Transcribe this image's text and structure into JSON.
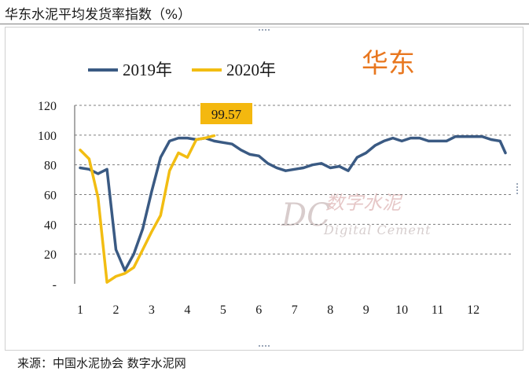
{
  "page_title": "华东水泥平均发货率指数（%）",
  "source_note": "来源：中国水泥协会  数字水泥网",
  "region_label": "华东",
  "watermark": {
    "mark": "DC",
    "text_cn": "数字水泥",
    "text_en": "Digital Cement"
  },
  "colors": {
    "s2019": "#3a5a83",
    "s2020": "#f2bd12",
    "region": "#e8771f",
    "grid": "#7f7f7f",
    "callout_bg": "#f4b80f"
  },
  "chart_data": {
    "type": "line",
    "title": "",
    "xlabel": "",
    "ylabel": "",
    "ylim": [
      0,
      120
    ],
    "yticks": [
      "-",
      "20",
      "40",
      "60",
      "80",
      "100",
      "120"
    ],
    "xlim": [
      1,
      12.9
    ],
    "xticks": [
      1,
      2,
      3,
      4,
      5,
      6,
      7,
      8,
      9,
      10,
      11,
      12
    ],
    "xtick_labels": [
      "1",
      "2",
      "3",
      "4",
      "5",
      "6",
      "7",
      "8",
      "9",
      "10",
      "11",
      "12"
    ],
    "grid": "horizontal dashed",
    "legend": "top-left",
    "annotation": {
      "label": "99.57",
      "series": "2020年"
    },
    "series": [
      {
        "name": "2019年",
        "points": [
          [
            1,
            78
          ],
          [
            1.25,
            77
          ],
          [
            1.5,
            74
          ],
          [
            1.75,
            77
          ],
          [
            2,
            23
          ],
          [
            2.25,
            9
          ],
          [
            2.5,
            20
          ],
          [
            2.75,
            37
          ],
          [
            3,
            62
          ],
          [
            3.25,
            85
          ],
          [
            3.5,
            96
          ],
          [
            3.75,
            98
          ],
          [
            4,
            98
          ],
          [
            4.25,
            97
          ],
          [
            4.5,
            98
          ],
          [
            4.75,
            96
          ],
          [
            5,
            95
          ],
          [
            5.25,
            94
          ],
          [
            5.5,
            90
          ],
          [
            5.75,
            87
          ],
          [
            6,
            86
          ],
          [
            6.25,
            81
          ],
          [
            6.5,
            78
          ],
          [
            6.75,
            76
          ],
          [
            7,
            77
          ],
          [
            7.25,
            78
          ],
          [
            7.5,
            80
          ],
          [
            7.75,
            81
          ],
          [
            8,
            78
          ],
          [
            8.25,
            79
          ],
          [
            8.5,
            76
          ],
          [
            8.75,
            85
          ],
          [
            9,
            88
          ],
          [
            9.25,
            93
          ],
          [
            9.5,
            96
          ],
          [
            9.75,
            98
          ],
          [
            10,
            96
          ],
          [
            10.25,
            98
          ],
          [
            10.5,
            98
          ],
          [
            10.75,
            96
          ],
          [
            11,
            96
          ],
          [
            11.25,
            96
          ],
          [
            11.5,
            99
          ],
          [
            11.75,
            99
          ],
          [
            12,
            99
          ],
          [
            12.25,
            99
          ],
          [
            12.5,
            97
          ],
          [
            12.75,
            96
          ],
          [
            12.9,
            88
          ]
        ]
      },
      {
        "name": "2020年",
        "points": [
          [
            1,
            90
          ],
          [
            1.25,
            84
          ],
          [
            1.5,
            58
          ],
          [
            1.75,
            1
          ],
          [
            2,
            5
          ],
          [
            2.25,
            7
          ],
          [
            2.5,
            11
          ],
          [
            2.75,
            23
          ],
          [
            3,
            35
          ],
          [
            3.25,
            46
          ],
          [
            3.5,
            76
          ],
          [
            3.75,
            88
          ],
          [
            4,
            85
          ],
          [
            4.25,
            97
          ],
          [
            4.5,
            98
          ],
          [
            4.75,
            99.57
          ]
        ]
      }
    ]
  }
}
